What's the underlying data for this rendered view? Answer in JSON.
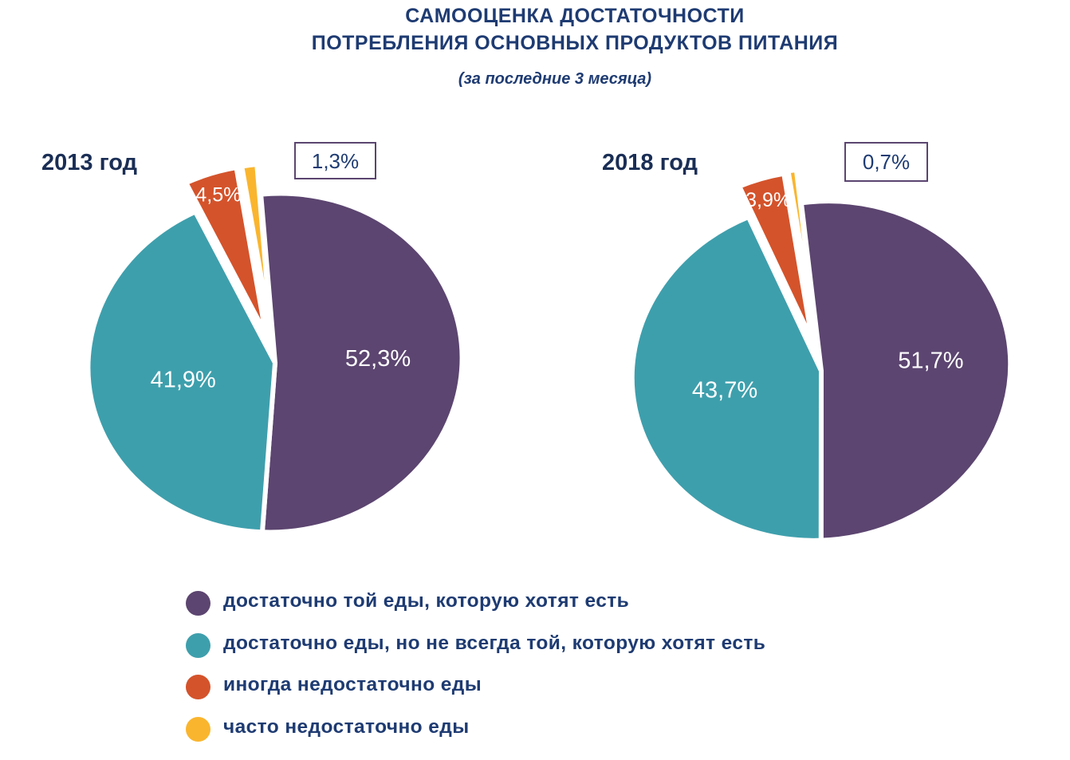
{
  "title_line1": "САМООЦЕНКА ДОСТАТОЧНОСТИ",
  "title_line2": "ПОТРЕБЛЕНИЯ ОСНОВНЫХ ПРОДУКТОВ ПИТАНИЯ",
  "subtitle": "(за последние 3 месяца)",
  "colors": {
    "purple": "#5c4570",
    "teal": "#3e9fac",
    "orange": "#d4532b",
    "yellow": "#fab52e",
    "text": "#1e3b72"
  },
  "legend": [
    {
      "label": "достаточно той еды, которую хотят есть",
      "color": "#5c4570"
    },
    {
      "label": " достаточно еды, но не всегда той, которую хотят есть",
      "color": "#3e9fac"
    },
    {
      "label": "иногда недостаточно еды",
      "color": "#d4532b"
    },
    {
      "label": "часто недостаточно еды",
      "color": "#fab52e"
    }
  ],
  "chart_data": [
    {
      "type": "pie",
      "title": "2013 год",
      "categories": [
        "достаточно той еды, которую хотят есть",
        "достаточно еды, но не всегда той, которую хотят есть",
        "иногда недостаточно еды",
        "часто недостаточно еды"
      ],
      "values": [
        52.3,
        41.9,
        4.5,
        1.3
      ],
      "labels": [
        "52,3%",
        "41,9%",
        "4,5%",
        "1,3%"
      ]
    },
    {
      "type": "pie",
      "title": "2018 год",
      "categories": [
        "достаточно той еды, которую хотят есть",
        "достаточно еды, но не всегда той, которую хотят есть",
        "иногда недостаточно еды",
        "часто недостаточно еды"
      ],
      "values": [
        51.7,
        43.7,
        3.9,
        0.7
      ],
      "labels": [
        "51,7%",
        "43,7%",
        "3,9%",
        "0,7%"
      ]
    }
  ]
}
